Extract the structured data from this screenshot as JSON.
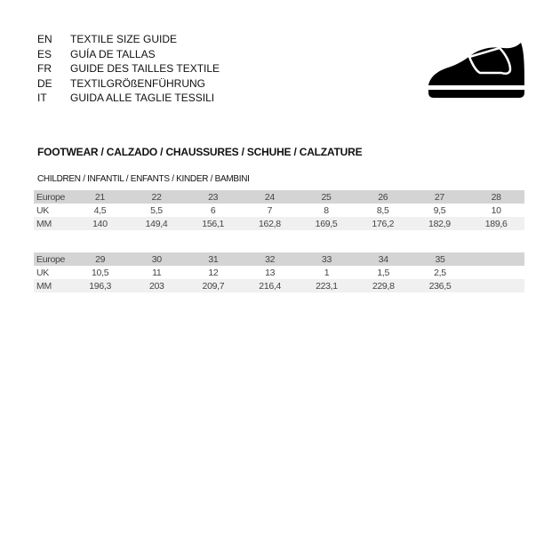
{
  "languages": [
    {
      "code": "EN",
      "title": "TEXTILE SIZE GUIDE"
    },
    {
      "code": "ES",
      "title": "GUÍA DE TALLAS"
    },
    {
      "code": "FR",
      "title": "GUIDE DES TAILLES TEXTILE"
    },
    {
      "code": "DE",
      "title": "TEXTILGRÖßENFÜHRUNG"
    },
    {
      "code": "IT",
      "title": "GUIDA ALLE TAGLIE TESSILI"
    }
  ],
  "icon": "shoe-velcro-icon",
  "section_title": "FOOTWEAR / CALZADO / CHAUSSURES / SCHUHE / CALZATURE",
  "subsection_title": "CHILDREN / INFANTIL / ENFANTS / KINDER / BAMBINI",
  "tables": [
    {
      "rows": [
        {
          "label": "Europe",
          "values": [
            "21",
            "22",
            "23",
            "24",
            "25",
            "26",
            "27",
            "28"
          ]
        },
        {
          "label": "UK",
          "values": [
            "4,5",
            "5,5",
            "6",
            "7",
            "8",
            "8,5",
            "9,5",
            "10"
          ]
        },
        {
          "label": "MM",
          "values": [
            "140",
            "149,4",
            "156,1",
            "162,8",
            "169,5",
            "176,2",
            "182,9",
            "189,6"
          ]
        }
      ]
    },
    {
      "rows": [
        {
          "label": "Europe",
          "values": [
            "29",
            "30",
            "31",
            "32",
            "33",
            "34",
            "35",
            ""
          ]
        },
        {
          "label": "UK",
          "values": [
            "10,5",
            "11",
            "12",
            "13",
            "1",
            "1,5",
            "2,5",
            ""
          ]
        },
        {
          "label": "MM",
          "values": [
            "196,3",
            "203",
            "209,7",
            "216,4",
            "223,1",
            "229,8",
            "236,5",
            ""
          ]
        }
      ]
    }
  ]
}
